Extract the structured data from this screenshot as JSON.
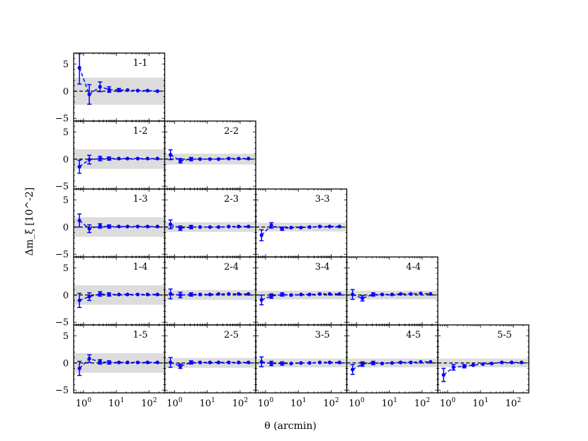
{
  "chart_data": {
    "type": "line",
    "xlabel": "θ (arcmin)",
    "ylabel": "Δm_ξ [10^-2]",
    "x_scale": "log",
    "xlim": [
      0.5,
      300
    ],
    "ylim": [
      -5.5,
      7
    ],
    "x_tick_labels": [
      "10^0",
      "10^1",
      "10^2"
    ],
    "y_tick_labels": [
      "5",
      "0",
      "−5"
    ],
    "reference_line_y": 0,
    "series_color": "#0000ff",
    "band_color": "#dcdcdc",
    "x": [
      0.75,
      1.5,
      3.2,
      6.0,
      12,
      22,
      45,
      90,
      180
    ],
    "panels": [
      {
        "label": "1-1",
        "row": 0,
        "col": 0,
        "band": 2.5,
        "y": [
          4.3,
          -0.6,
          0.8,
          0.3,
          0.2,
          0.2,
          0.1,
          0.1,
          0.0
        ],
        "err": [
          3.0,
          1.8,
          0.9,
          0.5,
          0.3,
          0.2,
          0.15,
          0.1,
          0.1
        ]
      },
      {
        "label": "1-2",
        "row": 1,
        "col": 0,
        "band": 1.8,
        "y": [
          -1.4,
          -0.1,
          0.1,
          0.1,
          0.1,
          0.1,
          0.1,
          0.1,
          0.1
        ],
        "err": [
          1.2,
          0.8,
          0.4,
          0.3,
          0.2,
          0.15,
          0.1,
          0.1,
          0.1
        ]
      },
      {
        "label": "2-2",
        "row": 1,
        "col": 1,
        "band": 1.0,
        "y": [
          0.8,
          -0.3,
          0.0,
          0.0,
          0.0,
          0.0,
          0.1,
          0.1,
          0.1
        ],
        "err": [
          0.9,
          0.4,
          0.3,
          0.2,
          0.15,
          0.1,
          0.1,
          0.1,
          0.1
        ]
      },
      {
        "label": "1-3",
        "row": 2,
        "col": 0,
        "band": 1.8,
        "y": [
          1.2,
          -0.3,
          0.2,
          0.1,
          0.1,
          0.1,
          0.1,
          0.1,
          0.1
        ],
        "err": [
          1.2,
          0.7,
          0.4,
          0.3,
          0.2,
          0.15,
          0.1,
          0.1,
          0.1
        ]
      },
      {
        "label": "2-3",
        "row": 2,
        "col": 1,
        "band": 0.9,
        "y": [
          0.5,
          -0.2,
          0.0,
          0.0,
          0.0,
          0.0,
          0.1,
          0.1,
          0.1
        ],
        "err": [
          0.8,
          0.4,
          0.3,
          0.2,
          0.15,
          0.1,
          0.1,
          0.1,
          0.1
        ]
      },
      {
        "label": "3-3",
        "row": 2,
        "col": 2,
        "band": 0.8,
        "y": [
          -1.5,
          0.3,
          -0.3,
          -0.1,
          -0.1,
          0.0,
          0.1,
          0.1,
          0.1
        ],
        "err": [
          1.0,
          0.5,
          0.3,
          0.2,
          0.15,
          0.1,
          0.1,
          0.1,
          0.1
        ]
      },
      {
        "label": "1-4",
        "row": 3,
        "col": 0,
        "band": 1.8,
        "y": [
          -1.0,
          -0.3,
          0.2,
          0.1,
          0.1,
          0.1,
          0.1,
          0.1,
          0.1
        ],
        "err": [
          1.3,
          0.7,
          0.4,
          0.3,
          0.2,
          0.15,
          0.1,
          0.1,
          0.1
        ]
      },
      {
        "label": "2-4",
        "row": 3,
        "col": 1,
        "band": 0.9,
        "y": [
          0.2,
          0.0,
          0.1,
          0.1,
          0.1,
          0.2,
          0.2,
          0.2,
          0.2
        ],
        "err": [
          0.9,
          0.5,
          0.3,
          0.2,
          0.15,
          0.1,
          0.1,
          0.1,
          0.1
        ]
      },
      {
        "label": "3-4",
        "row": 3,
        "col": 2,
        "band": 0.8,
        "y": [
          -0.9,
          -0.2,
          0.1,
          0.0,
          0.1,
          0.1,
          0.2,
          0.2,
          0.2
        ],
        "err": [
          0.9,
          0.4,
          0.3,
          0.2,
          0.15,
          0.1,
          0.1,
          0.1,
          0.1
        ]
      },
      {
        "label": "4-4",
        "row": 3,
        "col": 3,
        "band": 0.8,
        "y": [
          0.1,
          -0.6,
          0.1,
          0.1,
          0.1,
          0.2,
          0.2,
          0.3,
          0.2
        ],
        "err": [
          0.9,
          0.5,
          0.3,
          0.2,
          0.15,
          0.1,
          0.1,
          0.1,
          0.1
        ]
      },
      {
        "label": "1-5",
        "row": 4,
        "col": 0,
        "band": 1.8,
        "y": [
          -1.0,
          0.8,
          0.2,
          0.1,
          0.1,
          0.1,
          0.1,
          0.1,
          0.1
        ],
        "err": [
          1.3,
          0.7,
          0.4,
          0.3,
          0.2,
          0.15,
          0.1,
          0.1,
          0.1
        ]
      },
      {
        "label": "2-5",
        "row": 4,
        "col": 1,
        "band": 0.9,
        "y": [
          0.1,
          -0.6,
          0.1,
          0.1,
          0.1,
          0.1,
          0.1,
          0.1,
          0.1
        ],
        "err": [
          0.9,
          0.4,
          0.3,
          0.2,
          0.15,
          0.1,
          0.1,
          0.1,
          0.1
        ]
      },
      {
        "label": "3-5",
        "row": 4,
        "col": 2,
        "band": 0.8,
        "y": [
          0.2,
          -0.1,
          -0.1,
          -0.1,
          0.0,
          0.0,
          0.1,
          0.1,
          0.1
        ],
        "err": [
          0.9,
          0.4,
          0.3,
          0.2,
          0.15,
          0.1,
          0.1,
          0.1,
          0.1
        ]
      },
      {
        "label": "4-5",
        "row": 4,
        "col": 3,
        "band": 0.8,
        "y": [
          -1.2,
          -0.2,
          0.0,
          -0.1,
          0.0,
          0.1,
          0.1,
          0.2,
          0.2
        ],
        "err": [
          0.9,
          0.4,
          0.3,
          0.2,
          0.15,
          0.1,
          0.1,
          0.1,
          0.1
        ]
      },
      {
        "label": "5-5",
        "row": 4,
        "col": 4,
        "band": 0.8,
        "y": [
          -2.2,
          -0.8,
          -0.6,
          -0.4,
          -0.2,
          -0.1,
          0.1,
          0.1,
          0.1
        ],
        "err": [
          1.2,
          0.5,
          0.3,
          0.2,
          0.15,
          0.1,
          0.1,
          0.1,
          0.1
        ]
      }
    ]
  }
}
